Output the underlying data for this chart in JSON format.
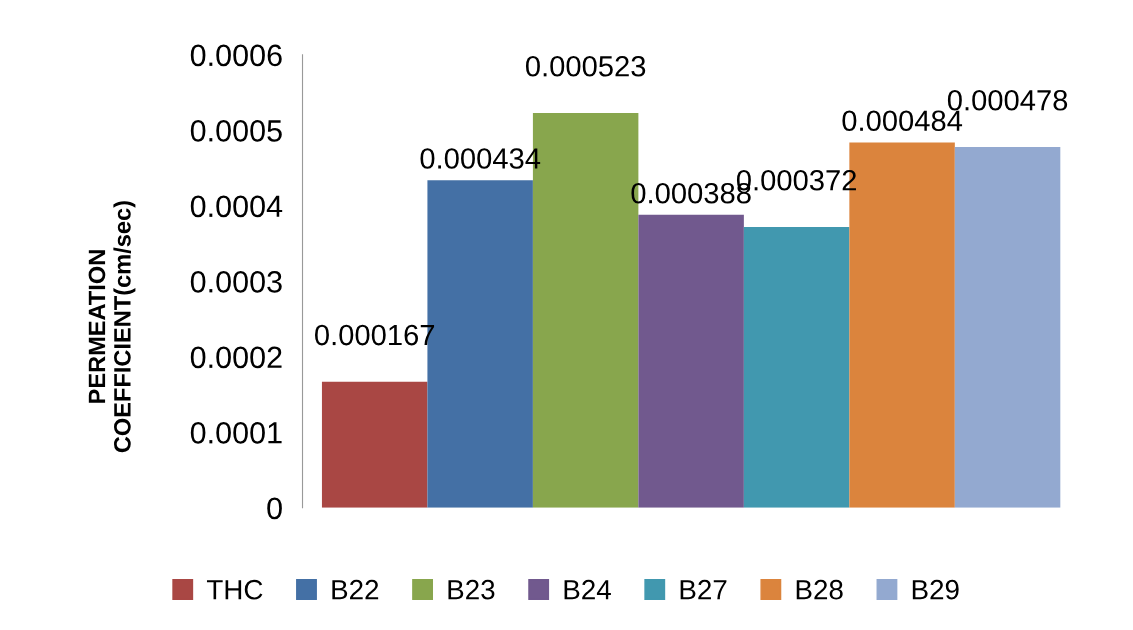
{
  "chart_data": {
    "type": "bar",
    "ylabel": "PERMEATION\nCOEFFICIENT(cm/sec)",
    "categories": [
      null
    ],
    "series": [
      {
        "name": "THC",
        "color": "#a94744",
        "values": [
          0.000167
        ]
      },
      {
        "name": "B22",
        "color": "#4470a5",
        "values": [
          0.000434
        ]
      },
      {
        "name": "B23",
        "color": "#88a64d",
        "values": [
          0.000523
        ]
      },
      {
        "name": "B24",
        "color": "#71598e",
        "values": [
          0.000388
        ]
      },
      {
        "name": "B27",
        "color": "#4198af",
        "values": [
          0.000372
        ]
      },
      {
        "name": "B28",
        "color": "#db843d",
        "values": [
          0.000484
        ]
      },
      {
        "name": "B29",
        "color": "#93a9d0",
        "values": [
          0.000478
        ]
      }
    ],
    "ylim": [
      0,
      0.0006
    ],
    "yticks": [
      0,
      0.0001,
      0.0002,
      0.0003,
      0.0004,
      0.0005,
      0.0006
    ],
    "data_labels": true,
    "grid": false,
    "legend": "bottom"
  }
}
